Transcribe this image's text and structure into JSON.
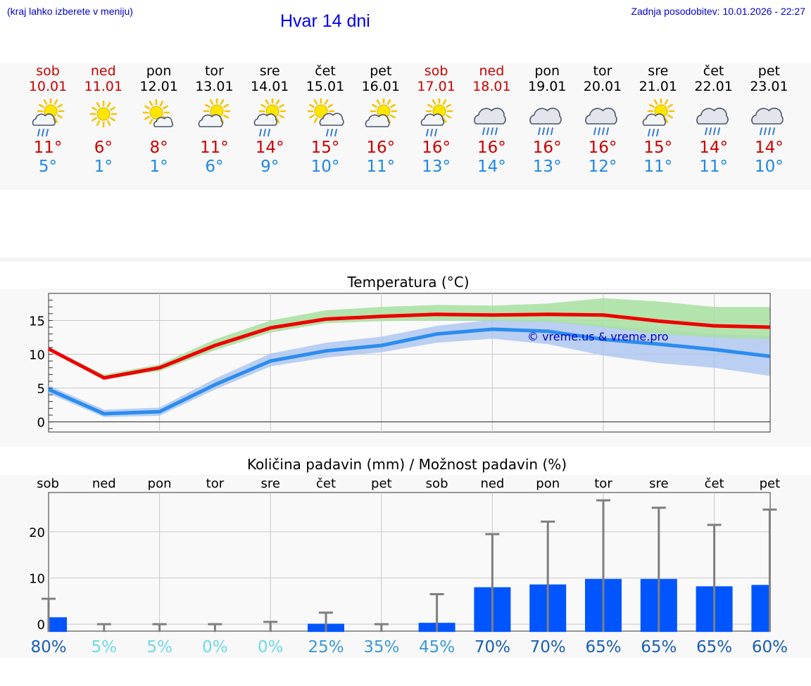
{
  "header": {
    "hint": "(kraj lahko izberete v meniju)",
    "title": "Hvar 14 dni",
    "updated": "Zadnja posodobitev: 10.01.2026 - 22:27"
  },
  "days": [
    {
      "name": "sob",
      "date": "10.01",
      "weekend": true,
      "icon": "partly-sunny-rain-icon",
      "tmax": "11°",
      "tmin": "5°"
    },
    {
      "name": "ned",
      "date": "11.01",
      "weekend": true,
      "icon": "sun-icon",
      "tmax": "6°",
      "tmin": "1°"
    },
    {
      "name": "pon",
      "date": "12.01",
      "weekend": false,
      "icon": "sun-small-cloud-icon",
      "tmax": "8°",
      "tmin": "1°"
    },
    {
      "name": "tor",
      "date": "13.01",
      "weekend": false,
      "icon": "partly-cloudy-icon",
      "tmax": "11°",
      "tmin": "6°"
    },
    {
      "name": "sre",
      "date": "14.01",
      "weekend": false,
      "icon": "partly-sunny-rain-icon",
      "tmax": "14°",
      "tmin": "9°"
    },
    {
      "name": "čet",
      "date": "15.01",
      "weekend": false,
      "icon": "sun-cloud-rain-icon",
      "tmax": "15°",
      "tmin": "10°"
    },
    {
      "name": "pet",
      "date": "16.01",
      "weekend": false,
      "icon": "partly-cloudy-icon",
      "tmax": "16°",
      "tmin": "11°"
    },
    {
      "name": "sob",
      "date": "17.01",
      "weekend": true,
      "icon": "partly-sunny-rain-icon",
      "tmax": "16°",
      "tmin": "13°"
    },
    {
      "name": "ned",
      "date": "18.01",
      "weekend": true,
      "icon": "rain-cloud-icon",
      "tmax": "16°",
      "tmin": "14°"
    },
    {
      "name": "pon",
      "date": "19.01",
      "weekend": false,
      "icon": "rain-cloud-icon",
      "tmax": "16°",
      "tmin": "13°"
    },
    {
      "name": "tor",
      "date": "20.01",
      "weekend": false,
      "icon": "rain-cloud-icon",
      "tmax": "16°",
      "tmin": "12°"
    },
    {
      "name": "sre",
      "date": "21.01",
      "weekend": false,
      "icon": "partly-sunny-rain-icon",
      "tmax": "15°",
      "tmin": "11°"
    },
    {
      "name": "čet",
      "date": "22.01",
      "weekend": false,
      "icon": "rain-cloud-icon",
      "tmax": "14°",
      "tmin": "11°"
    },
    {
      "name": "pet",
      "date": "23.01",
      "weekend": false,
      "icon": "rain-cloud-icon",
      "tmax": "14°",
      "tmin": "10°"
    }
  ],
  "colors": {
    "max_line": "#ee0000",
    "max_band": "#a8e0a0",
    "min_line": "#2b8cf0",
    "min_band": "#aac4f0",
    "bar": "#0055ff",
    "whisker": "#7f7f7f",
    "weekend": "#cc0000"
  },
  "chart_data": [
    {
      "type": "line",
      "title": "Temperatura (°C)",
      "watermark": "© vreme.us & vreme.pro",
      "xlabel": "",
      "ylabel": "",
      "ylim": [
        -1.5,
        19
      ],
      "yticks": [
        0,
        5,
        10,
        15
      ],
      "x": [
        0,
        1,
        2,
        3,
        4,
        5,
        6,
        7,
        8,
        9,
        10,
        11,
        12,
        13
      ],
      "series": [
        {
          "name": "max",
          "values": [
            10.8,
            6.5,
            8,
            11.3,
            13.9,
            15.2,
            15.6,
            15.9,
            15.8,
            15.9,
            15.8,
            14.9,
            14.2,
            14.0
          ],
          "band_low": [
            10.5,
            6.3,
            7.5,
            10.6,
            13.2,
            14.6,
            14.9,
            15.0,
            15.0,
            14.8,
            14.0,
            13.0,
            12.5,
            12.2
          ],
          "band_high": [
            11.0,
            7.0,
            8.5,
            12.2,
            15.0,
            16.5,
            17.0,
            17.3,
            17.2,
            17.5,
            18.3,
            17.8,
            17.0,
            17.0
          ]
        },
        {
          "name": "min",
          "values": [
            4.8,
            1.2,
            1.5,
            5.5,
            9.0,
            10.5,
            11.3,
            13.0,
            13.7,
            13.4,
            12.2,
            11.5,
            10.7,
            9.7
          ],
          "band_low": [
            4.2,
            0.7,
            0.9,
            4.8,
            8.2,
            9.5,
            10.3,
            11.7,
            12.3,
            11.5,
            9.8,
            8.7,
            8.0,
            6.8
          ],
          "band_high": [
            5.4,
            1.8,
            2.1,
            6.4,
            10.1,
            11.7,
            12.6,
            14.2,
            15.1,
            15.0,
            14.3,
            13.6,
            13.0,
            12.7
          ]
        }
      ]
    },
    {
      "type": "bar",
      "title": "Količina padavin (mm) / Možnost padavin (%)",
      "categories": [
        "sob",
        "ned",
        "pon",
        "tor",
        "sre",
        "čet",
        "pet",
        "sob",
        "ned",
        "pon",
        "tor",
        "sre",
        "čet",
        "pet"
      ],
      "ylim": [
        -1.5,
        28.5
      ],
      "yticks": [
        0,
        10,
        20
      ],
      "values": [
        1.5,
        0,
        0,
        0,
        0,
        0.1,
        0,
        0.3,
        8.0,
        8.6,
        9.8,
        9.8,
        8.2,
        8.5
      ],
      "whisker_high": [
        5.5,
        0,
        0,
        0,
        0.5,
        2.5,
        0,
        6.5,
        19.5,
        22.2,
        26.8,
        25.2,
        21.5,
        24.8
      ],
      "probability": [
        "80%",
        "5%",
        "5%",
        "0%",
        "0%",
        "25%",
        "35%",
        "45%",
        "70%",
        "70%",
        "65%",
        "65%",
        "65%",
        "60%"
      ],
      "probability_colors": [
        "#1a5fb4",
        "#6fd8e8",
        "#6fd8e8",
        "#6fd8e8",
        "#6fd8e8",
        "#3a9ad8",
        "#3a9ad8",
        "#3a9ad8",
        "#1a5fb4",
        "#1a5fb4",
        "#1a5fb4",
        "#1a5fb4",
        "#1a5fb4",
        "#1a5fb4"
      ]
    }
  ]
}
